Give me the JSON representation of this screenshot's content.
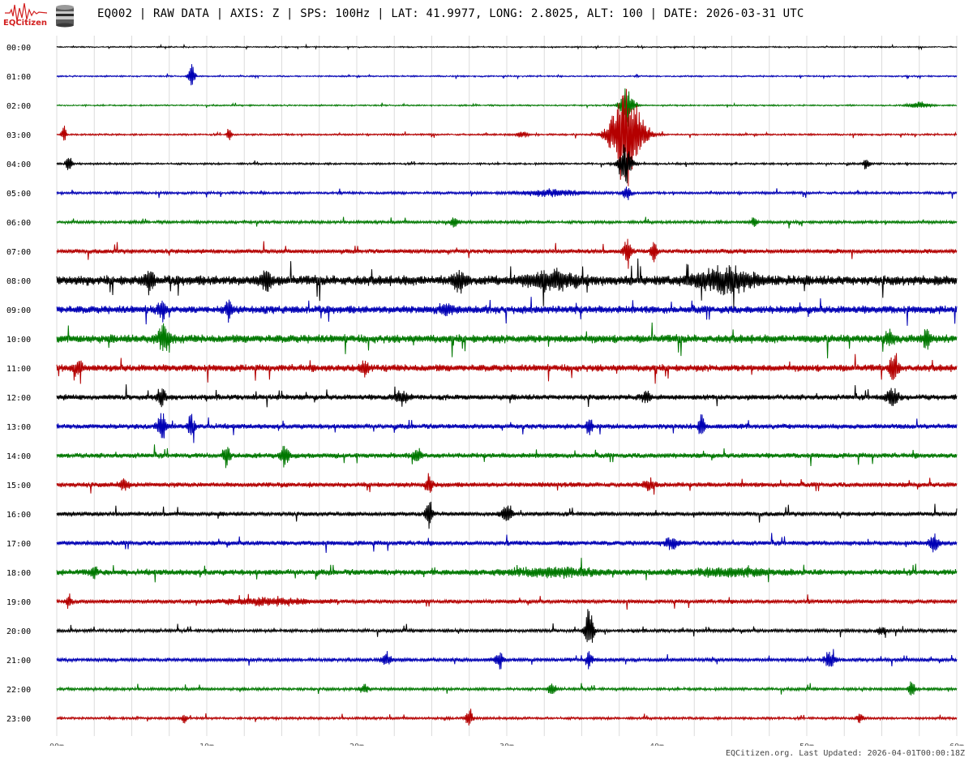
{
  "header": {
    "logo_text": "EQCitizen",
    "title": "EQ002 | RAW DATA | AXIS: Z | SPS: 100Hz | LAT: 41.9977, LONG: 2.8025, ALT: 100 | DATE: 2026-03-31 UTC"
  },
  "footer": {
    "text": "EQCitizen.org. Last Updated: 2026-04-01T00:00:18Z"
  },
  "chart_data": {
    "type": "line",
    "title": "EQ002 | RAW DATA | AXIS: Z | SPS: 100Hz | LAT: 41.9977, LONG: 2.8025, ALT: 100 | DATE: 2026-03-31 UTC",
    "x_tick_labels": [
      "00m",
      "10m",
      "20m",
      "30m",
      "40m",
      "50m",
      "60m"
    ],
    "x_ticks": [
      0,
      10,
      20,
      30,
      40,
      50,
      60
    ],
    "xlim": [
      0,
      60
    ],
    "grid": true,
    "grid_interval_minutes": 2.5,
    "series_colors": [
      "#000000",
      "#0000b4",
      "#007800",
      "#b40000"
    ],
    "series": [
      {
        "hour": "00:00",
        "color": "#000000",
        "noise": 0.5,
        "bursts": []
      },
      {
        "hour": "01:00",
        "color": "#0000b4",
        "noise": 0.6,
        "bursts": [
          {
            "t": 9.0,
            "amp": 18,
            "dur": 0.3
          }
        ]
      },
      {
        "hour": "02:00",
        "color": "#007800",
        "noise": 0.6,
        "bursts": [
          {
            "t": 38.0,
            "amp": 30,
            "dur": 0.6
          },
          {
            "t": 57.5,
            "amp": 5,
            "dur": 1.0
          }
        ]
      },
      {
        "hour": "03:00",
        "color": "#b40000",
        "noise": 0.8,
        "bursts": [
          {
            "t": 0.5,
            "amp": 14,
            "dur": 0.2
          },
          {
            "t": 11.5,
            "amp": 12,
            "dur": 0.2
          },
          {
            "t": 31.0,
            "amp": 5,
            "dur": 0.5
          },
          {
            "t": 38.0,
            "amp": 75,
            "dur": 1.4
          }
        ]
      },
      {
        "hour": "04:00",
        "color": "#000000",
        "noise": 0.9,
        "bursts": [
          {
            "t": 0.8,
            "amp": 12,
            "dur": 0.3
          },
          {
            "t": 37.9,
            "amp": 30,
            "dur": 0.6
          },
          {
            "t": 54.0,
            "amp": 10,
            "dur": 0.3
          }
        ]
      },
      {
        "hour": "05:00",
        "color": "#0000b4",
        "noise": 1.2,
        "bursts": [
          {
            "t": 38.0,
            "amp": 10,
            "dur": 0.4
          },
          {
            "t": 33.0,
            "amp": 5,
            "dur": 3.0
          }
        ]
      },
      {
        "hour": "06:00",
        "color": "#007800",
        "noise": 1.4,
        "bursts": [
          {
            "t": 26.5,
            "amp": 12,
            "dur": 0.3
          },
          {
            "t": 46.5,
            "amp": 8,
            "dur": 0.3
          }
        ]
      },
      {
        "hour": "07:00",
        "color": "#b40000",
        "noise": 2.2,
        "bursts": [
          {
            "t": 38.0,
            "amp": 18,
            "dur": 0.4
          },
          {
            "t": 39.8,
            "amp": 16,
            "dur": 0.3
          }
        ]
      },
      {
        "hour": "08:00",
        "color": "#000000",
        "noise": 5.0,
        "bursts": [
          {
            "t": 6.2,
            "amp": 16,
            "dur": 0.4
          },
          {
            "t": 14.0,
            "amp": 14,
            "dur": 0.5
          },
          {
            "t": 26.8,
            "amp": 16,
            "dur": 0.6
          },
          {
            "t": 33.0,
            "amp": 12,
            "dur": 2.5
          },
          {
            "t": 44.5,
            "amp": 18,
            "dur": 2.5
          }
        ]
      },
      {
        "hour": "09:00",
        "color": "#0000b4",
        "noise": 4.0,
        "bursts": [
          {
            "t": 7.0,
            "amp": 14,
            "dur": 0.4
          },
          {
            "t": 11.5,
            "amp": 16,
            "dur": 0.3
          },
          {
            "t": 26.0,
            "amp": 10,
            "dur": 0.6
          }
        ]
      },
      {
        "hour": "10:00",
        "color": "#007800",
        "noise": 4.2,
        "bursts": [
          {
            "t": 7.2,
            "amp": 24,
            "dur": 0.6
          },
          {
            "t": 55.5,
            "amp": 12,
            "dur": 0.4
          },
          {
            "t": 58.0,
            "amp": 14,
            "dur": 0.4
          }
        ]
      },
      {
        "hour": "11:00",
        "color": "#b40000",
        "noise": 3.6,
        "bursts": [
          {
            "t": 1.5,
            "amp": 10,
            "dur": 0.3
          },
          {
            "t": 20.5,
            "amp": 12,
            "dur": 0.4
          },
          {
            "t": 55.8,
            "amp": 20,
            "dur": 0.4
          }
        ]
      },
      {
        "hour": "12:00",
        "color": "#000000",
        "noise": 2.8,
        "bursts": [
          {
            "t": 7.0,
            "amp": 12,
            "dur": 0.4
          },
          {
            "t": 23.0,
            "amp": 10,
            "dur": 0.6
          },
          {
            "t": 39.3,
            "amp": 8,
            "dur": 0.4
          },
          {
            "t": 55.7,
            "amp": 16,
            "dur": 0.5
          }
        ]
      },
      {
        "hour": "13:00",
        "color": "#0000b4",
        "noise": 2.6,
        "bursts": [
          {
            "t": 7.0,
            "amp": 22,
            "dur": 0.4
          },
          {
            "t": 9.0,
            "amp": 20,
            "dur": 0.3
          },
          {
            "t": 35.5,
            "amp": 12,
            "dur": 0.3
          },
          {
            "t": 43.0,
            "amp": 14,
            "dur": 0.3
          }
        ]
      },
      {
        "hour": "14:00",
        "color": "#007800",
        "noise": 2.6,
        "bursts": [
          {
            "t": 11.3,
            "amp": 18,
            "dur": 0.3
          },
          {
            "t": 15.2,
            "amp": 16,
            "dur": 0.4
          },
          {
            "t": 24.0,
            "amp": 12,
            "dur": 0.4
          }
        ]
      },
      {
        "hour": "15:00",
        "color": "#b40000",
        "noise": 2.5,
        "bursts": [
          {
            "t": 4.5,
            "amp": 8,
            "dur": 0.5
          },
          {
            "t": 24.8,
            "amp": 16,
            "dur": 0.3
          },
          {
            "t": 39.5,
            "amp": 8,
            "dur": 0.5
          }
        ]
      },
      {
        "hour": "16:00",
        "color": "#000000",
        "noise": 2.2,
        "bursts": [
          {
            "t": 24.8,
            "amp": 28,
            "dur": 0.3
          },
          {
            "t": 30.0,
            "amp": 14,
            "dur": 0.5
          }
        ]
      },
      {
        "hour": "17:00",
        "color": "#0000b4",
        "noise": 2.4,
        "bursts": [
          {
            "t": 41.0,
            "amp": 10,
            "dur": 0.6
          },
          {
            "t": 58.5,
            "amp": 12,
            "dur": 0.4
          }
        ]
      },
      {
        "hour": "18:00",
        "color": "#007800",
        "noise": 3.0,
        "bursts": [
          {
            "t": 33.0,
            "amp": 6,
            "dur": 4.0
          },
          {
            "t": 45.0,
            "amp": 5,
            "dur": 4.0
          },
          {
            "t": 2.5,
            "amp": 10,
            "dur": 0.3
          }
        ]
      },
      {
        "hour": "19:00",
        "color": "#b40000",
        "noise": 2.0,
        "bursts": [
          {
            "t": 14.0,
            "amp": 5,
            "dur": 4.0
          },
          {
            "t": 0.8,
            "amp": 10,
            "dur": 0.3
          }
        ]
      },
      {
        "hour": "20:00",
        "color": "#000000",
        "noise": 1.6,
        "bursts": [
          {
            "t": 35.5,
            "amp": 35,
            "dur": 0.4
          },
          {
            "t": 55.0,
            "amp": 6,
            "dur": 0.4
          }
        ]
      },
      {
        "hour": "21:00",
        "color": "#0000b4",
        "noise": 1.8,
        "bursts": [
          {
            "t": 22.0,
            "amp": 12,
            "dur": 0.4
          },
          {
            "t": 29.5,
            "amp": 12,
            "dur": 0.4
          },
          {
            "t": 35.5,
            "amp": 14,
            "dur": 0.3
          },
          {
            "t": 51.5,
            "amp": 12,
            "dur": 0.5
          }
        ]
      },
      {
        "hour": "22:00",
        "color": "#007800",
        "noise": 1.4,
        "bursts": [
          {
            "t": 20.5,
            "amp": 8,
            "dur": 0.4
          },
          {
            "t": 33.0,
            "amp": 10,
            "dur": 0.4
          },
          {
            "t": 57.0,
            "amp": 12,
            "dur": 0.3
          }
        ]
      },
      {
        "hour": "23:00",
        "color": "#b40000",
        "noise": 1.2,
        "bursts": [
          {
            "t": 27.5,
            "amp": 16,
            "dur": 0.3
          },
          {
            "t": 8.5,
            "amp": 6,
            "dur": 0.3
          },
          {
            "t": 53.5,
            "amp": 8,
            "dur": 0.3
          }
        ]
      }
    ]
  }
}
